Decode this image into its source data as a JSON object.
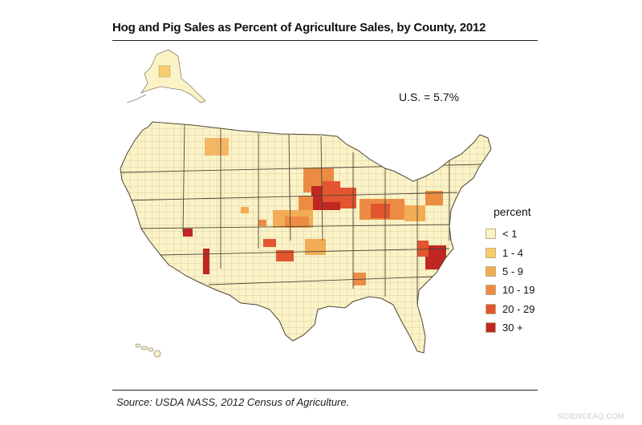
{
  "title": "Hog and Pig Sales as Percent of Agriculture Sales, by County, 2012",
  "us_total": "U.S. = 5.7%",
  "legend": {
    "title": "percent",
    "items": [
      {
        "label": "< 1",
        "color": "#fbf3c6"
      },
      {
        "label": "1 - 4",
        "color": "#f8cd6c"
      },
      {
        "label": "5 - 9",
        "color": "#f2ac55"
      },
      {
        "label": "10 - 19",
        "color": "#ec8c44"
      },
      {
        "label": "20 - 29",
        "color": "#e25530"
      },
      {
        "label": "30 +",
        "color": "#c02722"
      }
    ]
  },
  "source": "Source: USDA NASS, 2012 Census of Agriculture.",
  "watermark": "SCIENCEAQ.COM",
  "map": {
    "regions": [
      "alaska",
      "hawaii",
      "contiguous-us"
    ],
    "base_color": "#fbf3c6",
    "boundary_color": "#8a8270"
  }
}
